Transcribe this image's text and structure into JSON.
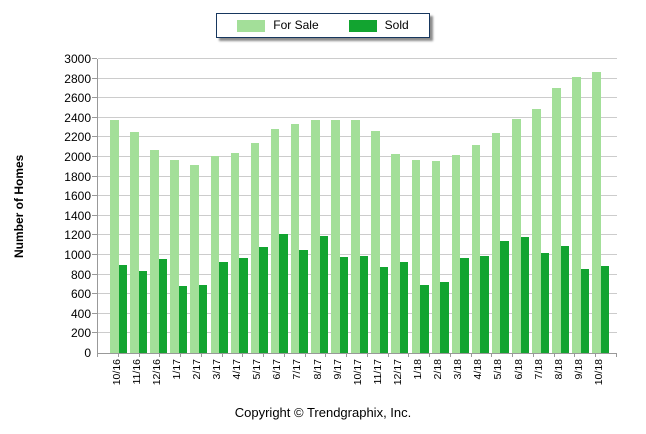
{
  "legend": {
    "border_color": "#17375E",
    "items": [
      {
        "label": "For Sale",
        "color": "#A3DF99"
      },
      {
        "label": "Sold",
        "color": "#12A430"
      }
    ]
  },
  "footer": {
    "text": "Copyright © Trendgraphix, Inc."
  },
  "chart_data": {
    "type": "bar",
    "title": "",
    "xlabel": "",
    "ylabel": "Number of Homes",
    "ylim": [
      0,
      3000
    ],
    "y_ticks": [
      0,
      200,
      400,
      600,
      800,
      1000,
      1200,
      1400,
      1600,
      1800,
      2000,
      2200,
      2400,
      2600,
      2800,
      3000
    ],
    "grid": true,
    "gridline_color": "#cccccc",
    "axis_color": "#999999",
    "legend_position": "top-center",
    "categories": [
      "10/16",
      "11/16",
      "12/16",
      "1/17",
      "2/17",
      "3/17",
      "4/17",
      "5/17",
      "6/17",
      "7/17",
      "8/17",
      "9/17",
      "10/17",
      "11/17",
      "12/17",
      "1/18",
      "2/18",
      "3/18",
      "4/18",
      "5/18",
      "6/18",
      "7/18",
      "8/18",
      "9/18",
      "10/18"
    ],
    "series": [
      {
        "name": "For Sale",
        "color": "#A3DF99",
        "values": [
          2380,
          2260,
          2070,
          1970,
          1920,
          2010,
          2040,
          2140,
          2290,
          2340,
          2380,
          2380,
          2380,
          2270,
          2030,
          1970,
          1960,
          2020,
          2120,
          2250,
          2390,
          2490,
          2700,
          2820,
          2870
        ]
      },
      {
        "name": "Sold",
        "color": "#12A430",
        "values": [
          900,
          840,
          960,
          680,
          690,
          930,
          970,
          1080,
          1210,
          1050,
          1190,
          980,
          990,
          880,
          930,
          690,
          720,
          970,
          990,
          1140,
          1180,
          1020,
          1090,
          860,
          890
        ]
      }
    ]
  }
}
